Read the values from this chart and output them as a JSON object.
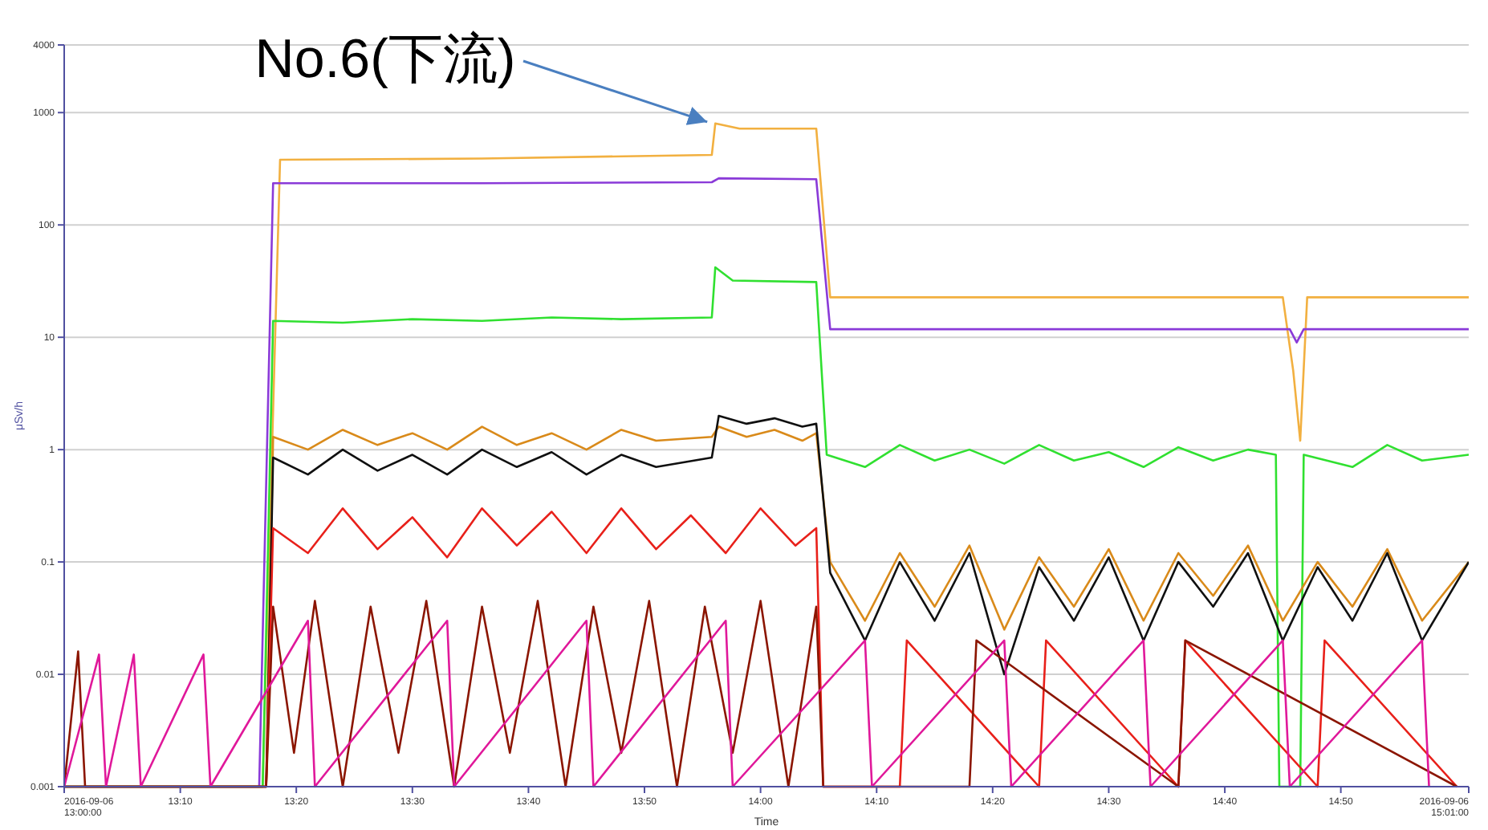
{
  "chart_data": {
    "type": "line",
    "xlabel": "Time",
    "ylabel": "μSv/h",
    "log": "y",
    "grid": "y",
    "marker": "none",
    "line_style": "solid",
    "xlim": [
      13.0,
      15.017
    ],
    "ylim": [
      0.001,
      4000
    ],
    "xticks": [
      {
        "value": 13.0,
        "label": "2016-09-06\n13:00:00"
      },
      {
        "value": 13.1667,
        "label": "13:10"
      },
      {
        "value": 13.3333,
        "label": "13:20"
      },
      {
        "value": 13.5,
        "label": "13:30"
      },
      {
        "value": 13.6667,
        "label": "13:40"
      },
      {
        "value": 13.8333,
        "label": "13:50"
      },
      {
        "value": 14.0,
        "label": "14:00"
      },
      {
        "value": 14.1667,
        "label": "14:10"
      },
      {
        "value": 14.3333,
        "label": "14:20"
      },
      {
        "value": 14.5,
        "label": "14:30"
      },
      {
        "value": 14.6667,
        "label": "14:40"
      },
      {
        "value": 14.8333,
        "label": "14:50"
      },
      {
        "value": 15.017,
        "label": "2016-09-06\n15:01:00"
      }
    ],
    "yticks": [
      {
        "value": 0.001,
        "label": "0.001"
      },
      0.01,
      0.1,
      1,
      10,
      100,
      1000,
      4000
    ],
    "annotations": [
      {
        "text": "No.6(下流)",
        "x": 13.93,
        "y": 800
      }
    ],
    "series": [
      {
        "color": "#f2b040",
        "x": [
          13.0,
          13.285,
          13.31,
          13.6,
          13.93,
          13.935,
          13.97,
          14.08,
          14.1,
          14.5,
          14.75,
          14.765,
          14.775,
          14.785,
          14.8,
          15.017
        ],
        "values": [
          0.001,
          0.001,
          380,
          390,
          420,
          800,
          720,
          720,
          22.7,
          22.7,
          22.7,
          5,
          1.2,
          22.7,
          22.7,
          22.7
        ]
      },
      {
        "color": "#8a3ad8",
        "x": [
          13.0,
          13.28,
          13.3,
          13.6,
          13.93,
          13.94,
          14.08,
          14.1,
          14.5,
          14.76,
          14.77,
          14.78,
          15.017
        ],
        "values": [
          0.001,
          0.001,
          235,
          235,
          240,
          260,
          255,
          11.8,
          11.8,
          11.8,
          9,
          11.8,
          11.8
        ]
      },
      {
        "color": "#30e030",
        "x": [
          13.0,
          13.285,
          13.3,
          13.4,
          13.5,
          13.6,
          13.7,
          13.8,
          13.93,
          13.935,
          13.96,
          14.08,
          14.095,
          14.15,
          14.2,
          14.25,
          14.3,
          14.35,
          14.4,
          14.45,
          14.5,
          14.55,
          14.6,
          14.65,
          14.7,
          14.74,
          14.745,
          14.775,
          14.78,
          14.85,
          14.9,
          14.95,
          15.017
        ],
        "values": [
          0.001,
          0.001,
          14,
          13.5,
          14.5,
          14,
          15,
          14.5,
          15,
          42,
          32,
          31,
          0.9,
          0.7,
          1.1,
          0.8,
          1.0,
          0.75,
          1.1,
          0.8,
          0.95,
          0.7,
          1.05,
          0.8,
          1.0,
          0.9,
          0.001,
          0.001,
          0.9,
          0.7,
          1.1,
          0.8,
          0.9
        ]
      },
      {
        "color": "#d98a1a",
        "x": [
          13.0,
          13.29,
          13.3,
          13.35,
          13.4,
          13.45,
          13.5,
          13.55,
          13.6,
          13.65,
          13.7,
          13.75,
          13.8,
          13.85,
          13.93,
          13.94,
          13.98,
          14.02,
          14.06,
          14.08,
          14.1,
          14.15,
          14.2,
          14.25,
          14.3,
          14.35,
          14.4,
          14.45,
          14.5,
          14.55,
          14.6,
          14.65,
          14.7,
          14.75,
          14.8,
          14.85,
          14.9,
          14.95,
          15.017
        ],
        "values": [
          0.001,
          0.001,
          1.3,
          1.0,
          1.5,
          1.1,
          1.4,
          1.0,
          1.6,
          1.1,
          1.4,
          1.0,
          1.5,
          1.2,
          1.3,
          1.6,
          1.3,
          1.5,
          1.2,
          1.4,
          0.1,
          0.03,
          0.12,
          0.04,
          0.14,
          0.025,
          0.11,
          0.04,
          0.13,
          0.03,
          0.12,
          0.05,
          0.14,
          0.03,
          0.1,
          0.04,
          0.13,
          0.03,
          0.1
        ]
      },
      {
        "color": "#101010",
        "x": [
          13.0,
          13.29,
          13.3,
          13.35,
          13.4,
          13.45,
          13.5,
          13.55,
          13.6,
          13.65,
          13.7,
          13.75,
          13.8,
          13.85,
          13.93,
          13.94,
          13.98,
          14.02,
          14.06,
          14.08,
          14.1,
          14.15,
          14.2,
          14.25,
          14.3,
          14.35,
          14.4,
          14.45,
          14.5,
          14.55,
          14.6,
          14.65,
          14.7,
          14.75,
          14.8,
          14.85,
          14.9,
          14.95,
          15.017
        ],
        "values": [
          0.001,
          0.001,
          0.85,
          0.6,
          1.0,
          0.65,
          0.9,
          0.6,
          1.0,
          0.7,
          0.95,
          0.6,
          0.9,
          0.7,
          0.85,
          2.0,
          1.7,
          1.9,
          1.6,
          1.7,
          0.08,
          0.02,
          0.1,
          0.03,
          0.12,
          0.01,
          0.09,
          0.03,
          0.11,
          0.02,
          0.1,
          0.04,
          0.12,
          0.02,
          0.09,
          0.03,
          0.12,
          0.02,
          0.1
        ]
      },
      {
        "color": "#e8201a",
        "x": [
          13.0,
          13.29,
          13.3,
          13.35,
          13.4,
          13.45,
          13.5,
          13.55,
          13.6,
          13.65,
          13.7,
          13.75,
          13.8,
          13.85,
          13.9,
          13.95,
          14.0,
          14.05,
          14.08,
          14.09,
          14.2,
          14.21,
          14.4,
          14.41,
          14.6,
          14.61,
          14.8,
          14.81,
          15.0
        ],
        "values": [
          0.001,
          0.001,
          0.2,
          0.12,
          0.3,
          0.13,
          0.25,
          0.11,
          0.3,
          0.14,
          0.28,
          0.12,
          0.3,
          0.13,
          0.26,
          0.12,
          0.3,
          0.14,
          0.2,
          0.001,
          0.001,
          0.02,
          0.001,
          0.02,
          0.001,
          0.02,
          0.001,
          0.02,
          0.001
        ]
      },
      {
        "color": "#8b1500",
        "x": [
          13.0,
          13.02,
          13.03,
          13.29,
          13.3,
          13.33,
          13.36,
          13.4,
          13.44,
          13.48,
          13.52,
          13.56,
          13.6,
          13.64,
          13.68,
          13.72,
          13.76,
          13.8,
          13.84,
          13.88,
          13.92,
          13.96,
          14.0,
          14.04,
          14.08,
          14.09,
          14.3,
          14.31,
          14.6,
          14.61,
          15.0
        ],
        "values": [
          0.001,
          0.016,
          0.001,
          0.001,
          0.04,
          0.002,
          0.045,
          0.001,
          0.04,
          0.002,
          0.045,
          0.001,
          0.04,
          0.002,
          0.045,
          0.001,
          0.04,
          0.002,
          0.045,
          0.001,
          0.04,
          0.002,
          0.045,
          0.001,
          0.04,
          0.001,
          0.001,
          0.02,
          0.001,
          0.02,
          0.001
        ]
      },
      {
        "color": "#e0189a",
        "x": [
          13.0,
          13.05,
          13.06,
          13.1,
          13.11,
          13.2,
          13.21,
          13.35,
          13.36,
          13.55,
          13.56,
          13.75,
          13.76,
          13.95,
          13.96,
          14.15,
          14.16,
          14.35,
          14.36,
          14.55,
          14.56,
          14.75,
          14.76,
          14.95,
          14.96
        ],
        "values": [
          0.001,
          0.015,
          0.001,
          0.015,
          0.001,
          0.015,
          0.001,
          0.03,
          0.001,
          0.03,
          0.001,
          0.03,
          0.001,
          0.03,
          0.001,
          0.02,
          0.001,
          0.02,
          0.001,
          0.02,
          0.001,
          0.02,
          0.001,
          0.02,
          0.001
        ]
      }
    ]
  }
}
